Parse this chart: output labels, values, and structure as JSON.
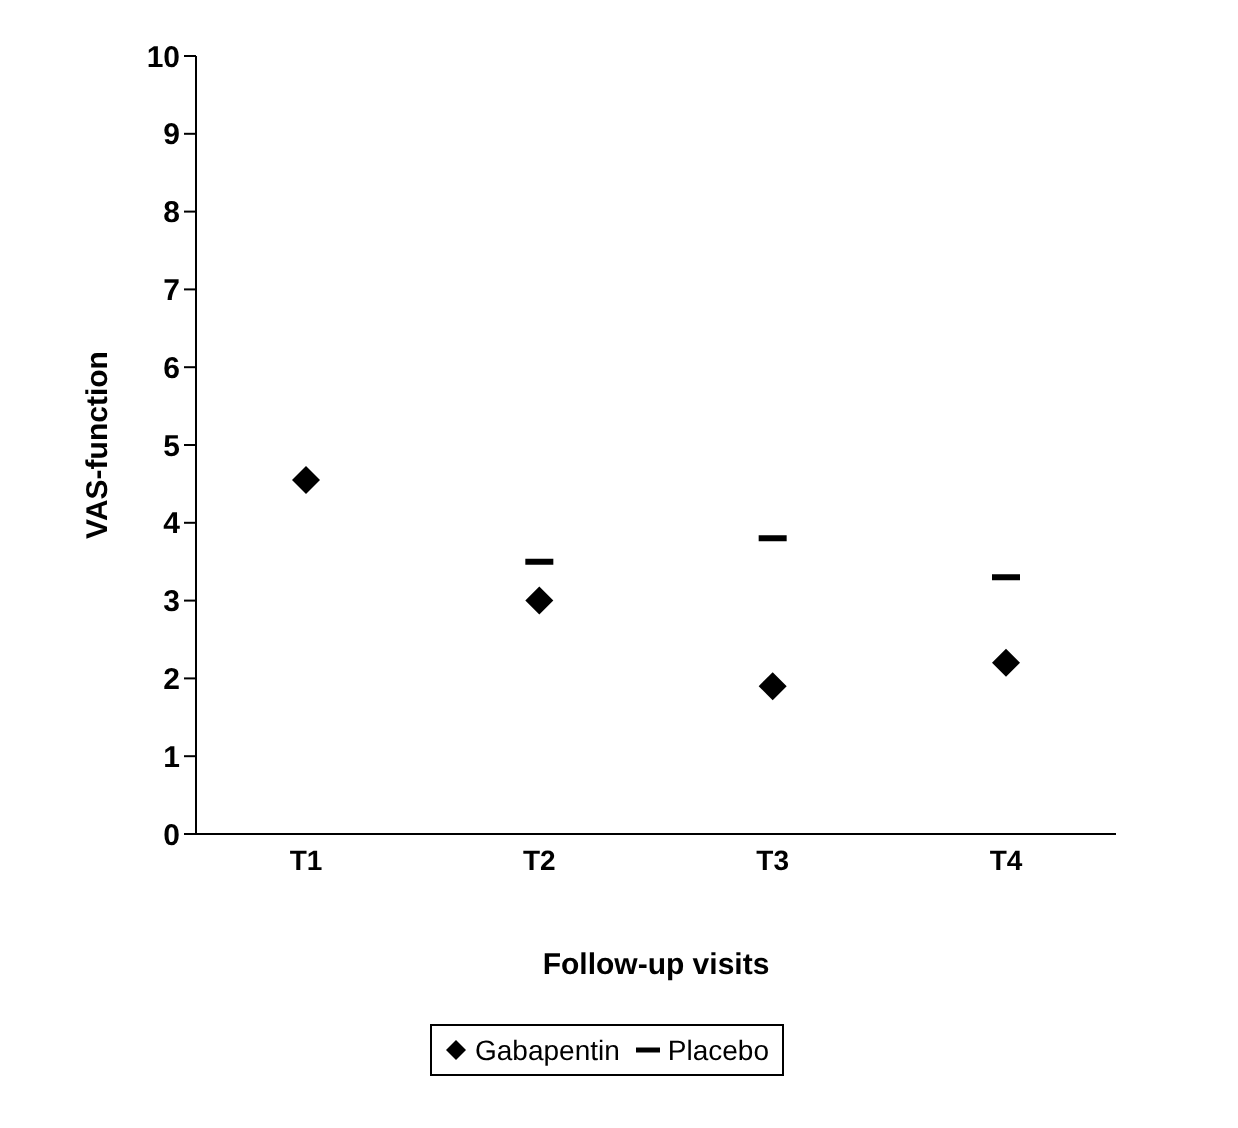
{
  "chart_data": {
    "type": "scatter",
    "xlabel": "Follow-up visits",
    "ylabel": "VAS-function",
    "categories": [
      "T1",
      "T2",
      "T3",
      "T4"
    ],
    "series": [
      {
        "name": "Gabapentin",
        "color": "#000000",
        "marker": "diamond",
        "values": [
          4.55,
          3.0,
          1.9,
          2.2
        ]
      },
      {
        "name": "Placebo",
        "color": "#000000",
        "values": [
          null,
          3.5,
          3.8,
          3.3
        ]
      }
    ],
    "ylim": [
      0,
      10
    ],
    "yticks": [
      0,
      1,
      2,
      3,
      4,
      5,
      6,
      7,
      8,
      9,
      10
    ],
    "grid": false,
    "legend": "bottom"
  }
}
